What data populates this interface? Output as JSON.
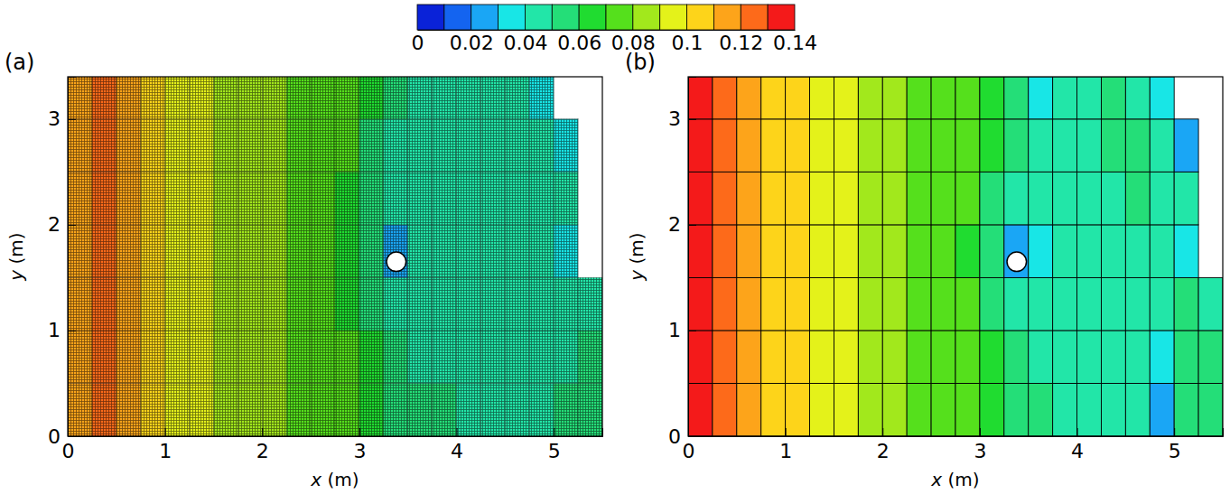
{
  "chart_data": [
    {
      "type": "heatmap",
      "panel": "(a)",
      "x_label": "x (m)",
      "y_label": "y (m)",
      "xlim": [
        0,
        5.5
      ],
      "ylim": [
        0,
        3.4
      ],
      "xticks": [
        0,
        1,
        2,
        3,
        4,
        5
      ],
      "yticks": [
        0,
        1,
        2,
        3
      ],
      "x_edges": [
        0,
        0.25,
        0.5,
        0.75,
        1,
        1.25,
        1.5,
        1.75,
        2,
        2.25,
        2.5,
        2.75,
        3,
        3.25,
        3.5,
        3.75,
        4,
        4.25,
        4.5,
        4.75,
        5,
        5.25,
        5.5
      ],
      "y_edges": [
        0,
        0.5,
        1,
        1.5,
        2,
        2.5,
        3,
        3.4
      ],
      "values": [
        [
          0.115,
          0.122,
          0.112,
          0.103,
          0.097,
          0.092,
          0.088,
          0.084,
          0.08,
          0.077,
          0.074,
          0.07,
          0.064,
          0.057,
          0.052,
          0.05,
          0.048,
          0.046,
          0.046,
          0.04,
          0.05,
          0.052
        ],
        [
          0.115,
          0.122,
          0.112,
          0.103,
          0.097,
          0.092,
          0.088,
          0.084,
          0.08,
          0.077,
          0.074,
          0.07,
          0.062,
          0.054,
          0.048,
          0.046,
          0.045,
          0.044,
          0.046,
          0.042,
          0.048,
          0.05
        ],
        [
          0.115,
          0.122,
          0.112,
          0.103,
          0.097,
          0.092,
          0.088,
          0.084,
          0.08,
          0.077,
          0.073,
          0.068,
          0.058,
          0.048,
          0.044,
          0.042,
          0.044,
          0.045,
          0.046,
          0.048,
          0.048,
          0.046
        ],
        [
          0.115,
          0.122,
          0.112,
          0.103,
          0.097,
          0.092,
          0.088,
          0.084,
          0.08,
          0.077,
          0.072,
          0.066,
          0.05,
          0.03,
          0.04,
          0.042,
          0.045,
          0.046,
          0.047,
          0.046,
          0.038,
          null
        ],
        [
          0.115,
          0.122,
          0.112,
          0.103,
          0.097,
          0.092,
          0.088,
          0.084,
          0.08,
          0.077,
          0.073,
          0.068,
          0.056,
          0.044,
          0.041,
          0.044,
          0.046,
          0.047,
          0.048,
          0.046,
          0.042,
          null
        ],
        [
          0.115,
          0.122,
          0.112,
          0.103,
          0.097,
          0.092,
          0.088,
          0.084,
          0.08,
          0.077,
          0.074,
          0.07,
          0.06,
          0.048,
          0.042,
          0.044,
          0.047,
          0.048,
          0.048,
          0.045,
          0.035,
          null
        ],
        [
          0.115,
          0.122,
          0.112,
          0.103,
          0.097,
          0.092,
          0.088,
          0.084,
          0.08,
          0.077,
          0.074,
          0.07,
          0.062,
          0.05,
          0.04,
          0.042,
          0.046,
          0.048,
          0.046,
          0.038,
          null,
          null
        ]
      ],
      "island": {
        "x": 3.38,
        "y": 1.65,
        "r": 0.1
      }
    },
    {
      "type": "heatmap",
      "panel": "(b)",
      "x_label": "x (m)",
      "y_label": "y (m)",
      "xlim": [
        0,
        5.5
      ],
      "ylim": [
        0,
        3.4
      ],
      "xticks": [
        0,
        1,
        2,
        3,
        4,
        5
      ],
      "yticks": [
        0,
        1,
        2,
        3
      ],
      "x_edges": [
        0,
        0.25,
        0.5,
        0.75,
        1,
        1.25,
        1.5,
        1.75,
        2,
        2.25,
        2.5,
        2.75,
        3,
        3.25,
        3.5,
        3.75,
        4,
        4.25,
        4.5,
        4.75,
        5,
        5.25,
        5.5
      ],
      "y_edges": [
        0,
        0.5,
        1,
        1.5,
        2,
        2.5,
        3,
        3.4
      ],
      "values": [
        [
          0.135,
          0.128,
          0.118,
          0.108,
          0.102,
          0.097,
          0.092,
          0.087,
          0.082,
          0.079,
          0.076,
          0.072,
          0.066,
          0.058,
          0.052,
          0.048,
          0.046,
          0.045,
          0.042,
          0.03,
          0.052,
          0.055
        ],
        [
          0.135,
          0.128,
          0.118,
          0.108,
          0.102,
          0.097,
          0.092,
          0.087,
          0.082,
          0.079,
          0.076,
          0.072,
          0.064,
          0.055,
          0.048,
          0.045,
          0.044,
          0.043,
          0.04,
          0.032,
          0.05,
          0.052
        ],
        [
          0.135,
          0.128,
          0.118,
          0.108,
          0.102,
          0.097,
          0.092,
          0.087,
          0.082,
          0.079,
          0.075,
          0.07,
          0.06,
          0.048,
          0.042,
          0.04,
          0.042,
          0.044,
          0.046,
          0.048,
          0.05,
          0.045
        ],
        [
          0.135,
          0.128,
          0.118,
          0.108,
          0.102,
          0.097,
          0.092,
          0.087,
          0.082,
          0.079,
          0.074,
          0.068,
          0.052,
          0.025,
          0.038,
          0.04,
          0.044,
          0.046,
          0.048,
          0.046,
          0.035,
          null
        ],
        [
          0.135,
          0.128,
          0.118,
          0.108,
          0.102,
          0.097,
          0.092,
          0.087,
          0.082,
          0.079,
          0.075,
          0.07,
          0.06,
          0.045,
          0.04,
          0.042,
          0.045,
          0.048,
          0.05,
          0.048,
          0.04,
          null
        ],
        [
          0.135,
          0.128,
          0.118,
          0.108,
          0.102,
          0.097,
          0.092,
          0.087,
          0.082,
          0.079,
          0.076,
          0.072,
          0.064,
          0.05,
          0.04,
          0.042,
          0.046,
          0.05,
          0.05,
          0.045,
          0.03,
          null
        ],
        [
          0.135,
          0.128,
          0.118,
          0.108,
          0.102,
          0.097,
          0.092,
          0.087,
          0.082,
          0.079,
          0.076,
          0.072,
          0.066,
          0.052,
          0.038,
          0.04,
          0.046,
          0.05,
          0.048,
          0.035,
          null,
          null
        ]
      ],
      "island": {
        "x": 3.38,
        "y": 1.65,
        "r": 0.1
      }
    }
  ],
  "colorbar": {
    "range": [
      0,
      0.14
    ],
    "ticks": [
      0,
      0.02,
      0.04,
      0.06,
      0.08,
      0.1,
      0.12,
      0.14
    ],
    "colors": [
      "#0a22d8",
      "#1464f0",
      "#1aa6f5",
      "#18e6e6",
      "#22e6a8",
      "#24de78",
      "#20dc30",
      "#55e01c",
      "#a2e81c",
      "#e4f21a",
      "#fdd41a",
      "#fda41a",
      "#fd6a1a",
      "#f41a1a"
    ]
  }
}
